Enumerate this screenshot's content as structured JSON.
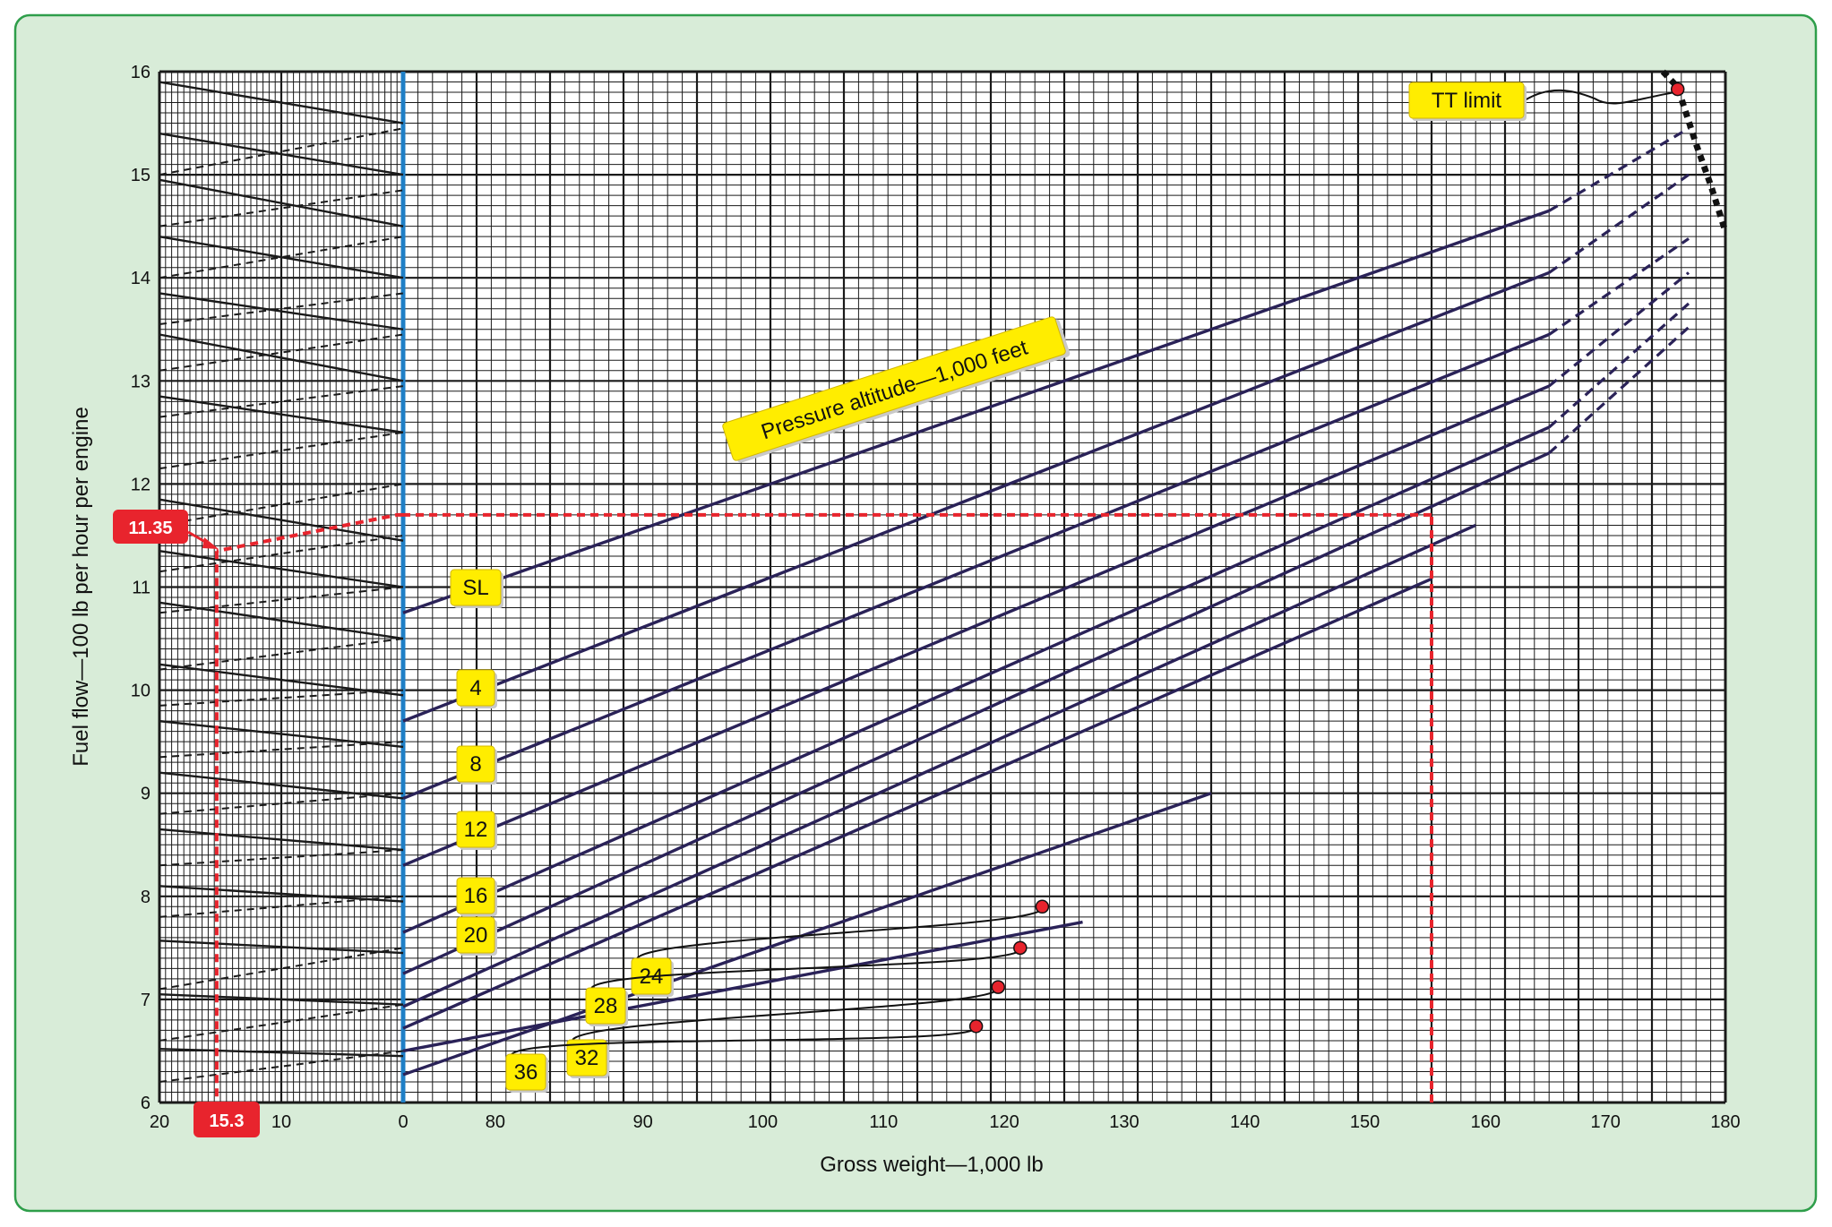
{
  "colors": {
    "panel_fill": "#d8ecd8",
    "panel_border": "#2e9e4a",
    "grid": "#1a1a1a",
    "curve": "#2a2258",
    "reference_line": "#1f7fc6",
    "example_path": "#e8242d",
    "label_fill": "#ffed00",
    "callout_fill": "#e8242d",
    "tt_limit": "#111111"
  },
  "chart_data": {
    "type": "line",
    "xlabel": "Gross weight—1,000 lb",
    "ylabel": "Fuel flow—100 lb per hour per engine",
    "xlim": [
      0,
      180
    ],
    "ylim": [
      6,
      16
    ],
    "left_panel": {
      "range": [
        20,
        0
      ],
      "tick_labels": [
        "20",
        "10",
        "0"
      ],
      "solid_guides": [
        [
          15.9,
          15.5
        ],
        [
          15.4,
          15.0
        ],
        [
          14.95,
          14.5
        ],
        [
          14.4,
          14.0
        ],
        [
          13.85,
          13.5
        ],
        [
          13.45,
          13.0
        ],
        [
          12.85,
          12.5
        ],
        [
          11.85,
          11.45
        ],
        [
          11.35,
          11.0
        ],
        [
          10.85,
          10.5
        ],
        [
          10.25,
          9.95
        ],
        [
          9.7,
          9.45
        ],
        [
          9.2,
          8.95
        ],
        [
          8.65,
          8.45
        ],
        [
          8.1,
          7.95
        ],
        [
          7.57,
          7.45
        ],
        [
          7.05,
          6.95
        ],
        [
          6.52,
          6.45
        ]
      ],
      "dashed_guides": [
        [
          15.0,
          15.45
        ],
        [
          14.5,
          14.85
        ],
        [
          14.0,
          14.4
        ],
        [
          13.55,
          13.85
        ],
        [
          13.1,
          13.45
        ],
        [
          12.65,
          12.95
        ],
        [
          12.15,
          12.5
        ],
        [
          11.6,
          12.0
        ],
        [
          11.15,
          11.5
        ],
        [
          10.75,
          11.0
        ],
        [
          10.2,
          10.5
        ],
        [
          9.85,
          10.0
        ],
        [
          9.35,
          9.5
        ],
        [
          8.8,
          9.0
        ],
        [
          8.3,
          8.45
        ],
        [
          7.8,
          8.0
        ],
        [
          7.1,
          7.5
        ],
        [
          6.6,
          6.95
        ],
        [
          6.2,
          6.5
        ]
      ]
    },
    "x_ticks": [
      "0",
      "80",
      "90",
      "100",
      "110",
      "120",
      "130",
      "140",
      "150",
      "160",
      "170",
      "180"
    ],
    "y_ticks": [
      "6",
      "7",
      "8",
      "9",
      "10",
      "11",
      "12",
      "13",
      "14",
      "15",
      "16"
    ],
    "series": [
      {
        "name": "SL",
        "solid": [
          [
            0,
            10.75
          ],
          [
            156,
            14.65
          ]
        ],
        "dashed": [
          [
            156,
            14.65
          ],
          [
            175,
            15.45
          ]
        ]
      },
      {
        "name": "4",
        "solid": [
          [
            0,
            9.7
          ],
          [
            156,
            14.05
          ]
        ],
        "dashed": [
          [
            156,
            14.05
          ],
          [
            175,
            15.0
          ]
        ]
      },
      {
        "name": "8",
        "solid": [
          [
            0,
            8.95
          ],
          [
            156,
            13.45
          ]
        ],
        "dashed": [
          [
            156,
            13.45
          ],
          [
            175,
            14.38
          ]
        ]
      },
      {
        "name": "12",
        "solid": [
          [
            0,
            8.3
          ],
          [
            156,
            12.95
          ]
        ],
        "dashed": [
          [
            156,
            12.95
          ],
          [
            175,
            14.05
          ]
        ]
      },
      {
        "name": "16",
        "solid": [
          [
            0,
            7.65
          ],
          [
            156,
            12.55
          ]
        ],
        "dashed": [
          [
            156,
            12.55
          ],
          [
            175,
            13.75
          ]
        ]
      },
      {
        "name": "20",
        "solid": [
          [
            0,
            7.25
          ],
          [
            156,
            12.3
          ]
        ],
        "dashed": [
          [
            156,
            12.3
          ],
          [
            175,
            13.52
          ]
        ]
      },
      {
        "name": "24",
        "solid": [
          [
            0,
            6.93
          ],
          [
            146,
            11.6
          ]
        ],
        "dashed": []
      },
      {
        "name": "28",
        "solid": [
          [
            0,
            6.72
          ],
          [
            140,
            11.08
          ]
        ],
        "dashed": []
      },
      {
        "name": "32",
        "solid": [
          [
            0,
            6.5
          ],
          [
            92.5,
            7.75
          ]
        ],
        "dashed": []
      },
      {
        "name": "36",
        "solid": [
          [
            0,
            6.27
          ],
          [
            110,
            9.0
          ]
        ],
        "dashed": []
      }
    ],
    "tt_limit": {
      "label": "TT limit",
      "points": [
        [
          171.5,
          16.0
        ],
        [
          173.5,
          15.85
        ],
        [
          176,
          15.3
        ],
        [
          178,
          14.9
        ],
        [
          180,
          14.45
        ]
      ],
      "marker": [
        173.5,
        15.83
      ]
    },
    "pressure_altitude_label": "Pressure altitude—1,000 feet",
    "ceiling_markers": [
      {
        "name": "24",
        "at": [
          87,
          7.9
        ]
      },
      {
        "name": "28",
        "at": [
          84,
          7.5
        ]
      },
      {
        "name": "32",
        "at": [
          81,
          7.12
        ]
      },
      {
        "name": "36",
        "at": [
          78,
          6.74
        ]
      }
    ],
    "example": {
      "gross_weight": 140,
      "fuel_flow_at_weight": 11.7,
      "result_fuel_flow": "11.35",
      "result_left_scale": "15.3",
      "result_left_scale_value": 15.3
    }
  }
}
